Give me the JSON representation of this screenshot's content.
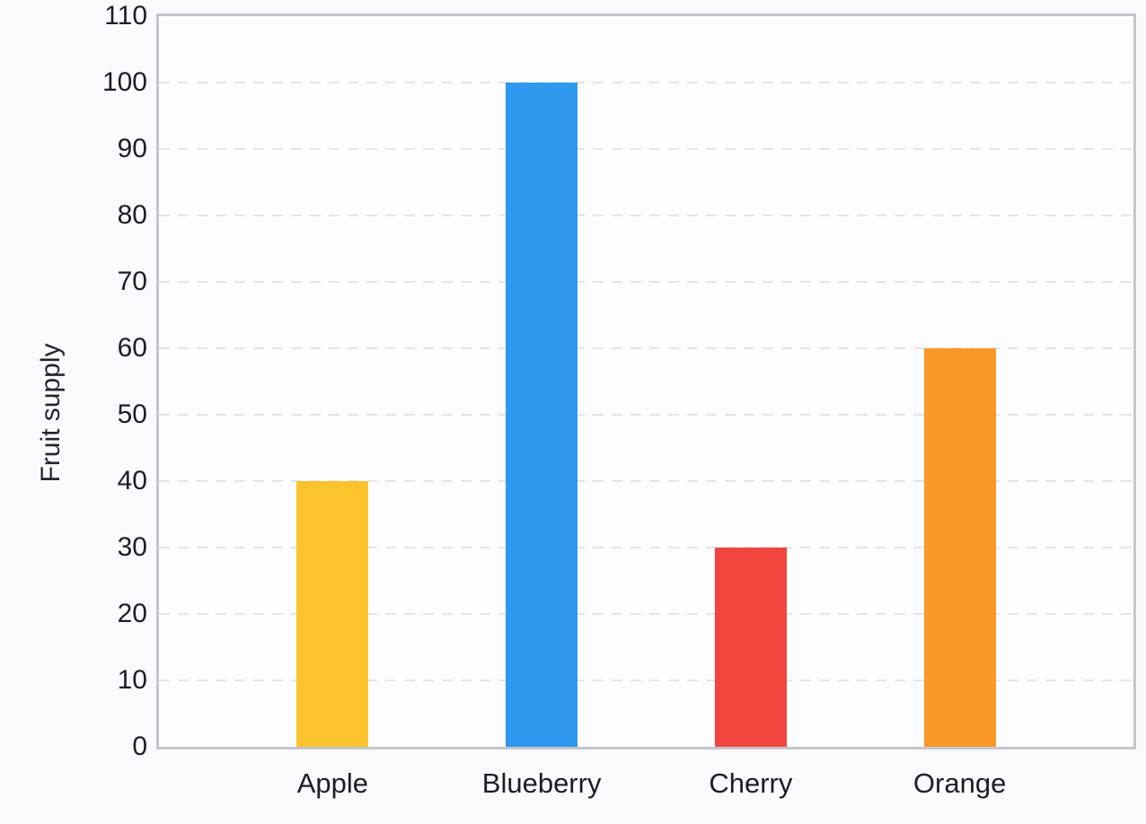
{
  "chart_data": {
    "type": "bar",
    "categories": [
      "Apple",
      "Blueberry",
      "Cherry",
      "Orange"
    ],
    "values": [
      40,
      100,
      30,
      60
    ],
    "bar_colors": [
      "#FCC32D",
      "#2E99EE",
      "#F2453D",
      "#FB9827"
    ],
    "title": "",
    "xlabel": "",
    "ylabel": "Fruit supply",
    "ylim": [
      0,
      110
    ],
    "ytick_step": 10,
    "ytick_labels": [
      "0",
      "10",
      "20",
      "30",
      "40",
      "50",
      "60",
      "70",
      "80",
      "90",
      "100",
      "110"
    ],
    "grid": "horizontal-dashed",
    "legend": "none"
  },
  "colors": {
    "page_background": "#FAFAFE",
    "plot_background": "#FDFDFF",
    "axis_border": "#C5C6CC",
    "gridline": "#E3E3E8",
    "text": "#1B1E24"
  }
}
